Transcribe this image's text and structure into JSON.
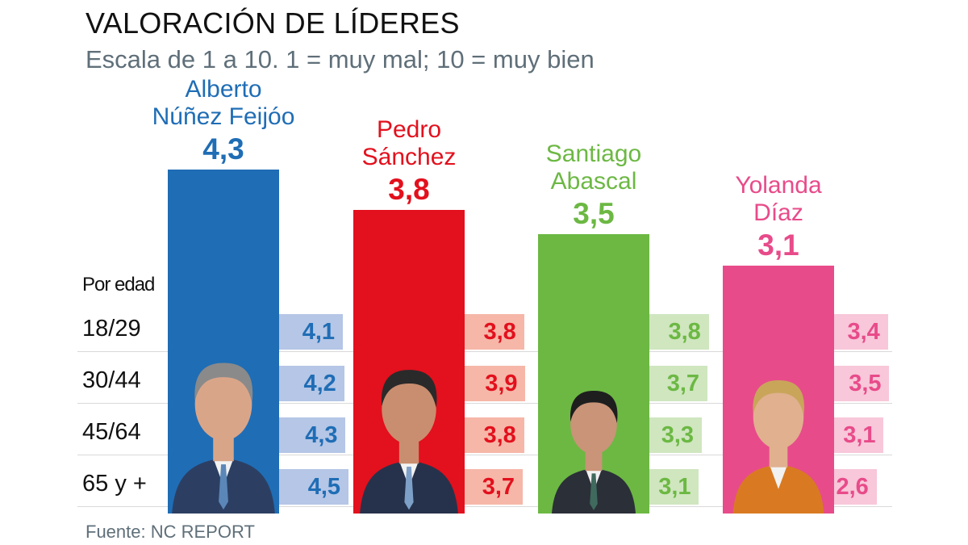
{
  "title": "VALORACIÓN DE LÍDERES",
  "subtitle": "Escala de 1 a 10. 1 = muy mal; 10 = muy bien",
  "source": "Fuente: NC REPORT",
  "age_header": "Por edad",
  "chart_data": {
    "type": "bar",
    "title": "VALORACIÓN DE LÍDERES",
    "subtitle": "Escala de 1 a 10. 1 = muy mal; 10 = muy bien",
    "ylim": [
      0,
      10
    ],
    "age_groups": [
      "18/29",
      "30/44",
      "45/64",
      "65 y +"
    ],
    "leaders": [
      {
        "name": "Alberto\nNúñez Feijóo",
        "value": 4.3,
        "value_label": "4,3",
        "color": "#1f6db5",
        "light_color": "#b5c6e6",
        "by_age": [
          4.1,
          4.2,
          4.3,
          4.5
        ],
        "by_age_labels": [
          "4,1",
          "4,2",
          "4,3",
          "4,5"
        ]
      },
      {
        "name": "Pedro\nSánchez",
        "value": 3.8,
        "value_label": "3,8",
        "color": "#e3101d",
        "light_color": "#f6b7a8",
        "by_age": [
          3.8,
          3.9,
          3.8,
          3.7
        ],
        "by_age_labels": [
          "3,8",
          "3,9",
          "3,8",
          "3,7"
        ]
      },
      {
        "name": "Santiago\nAbascal",
        "value": 3.5,
        "value_label": "3,5",
        "color": "#6cb843",
        "light_color": "#cfe6bf",
        "by_age": [
          3.8,
          3.7,
          3.3,
          3.1
        ],
        "by_age_labels": [
          "3,8",
          "3,7",
          "3,3",
          "3,1"
        ]
      },
      {
        "name": "Yolanda\nDíaz",
        "value": 3.1,
        "value_label": "3,1",
        "color": "#e84b8a",
        "light_color": "#f8c7d9",
        "by_age": [
          3.4,
          3.5,
          3.1,
          2.6
        ],
        "by_age_labels": [
          "3,4",
          "3,5",
          "3,1",
          "2,6"
        ]
      }
    ]
  }
}
